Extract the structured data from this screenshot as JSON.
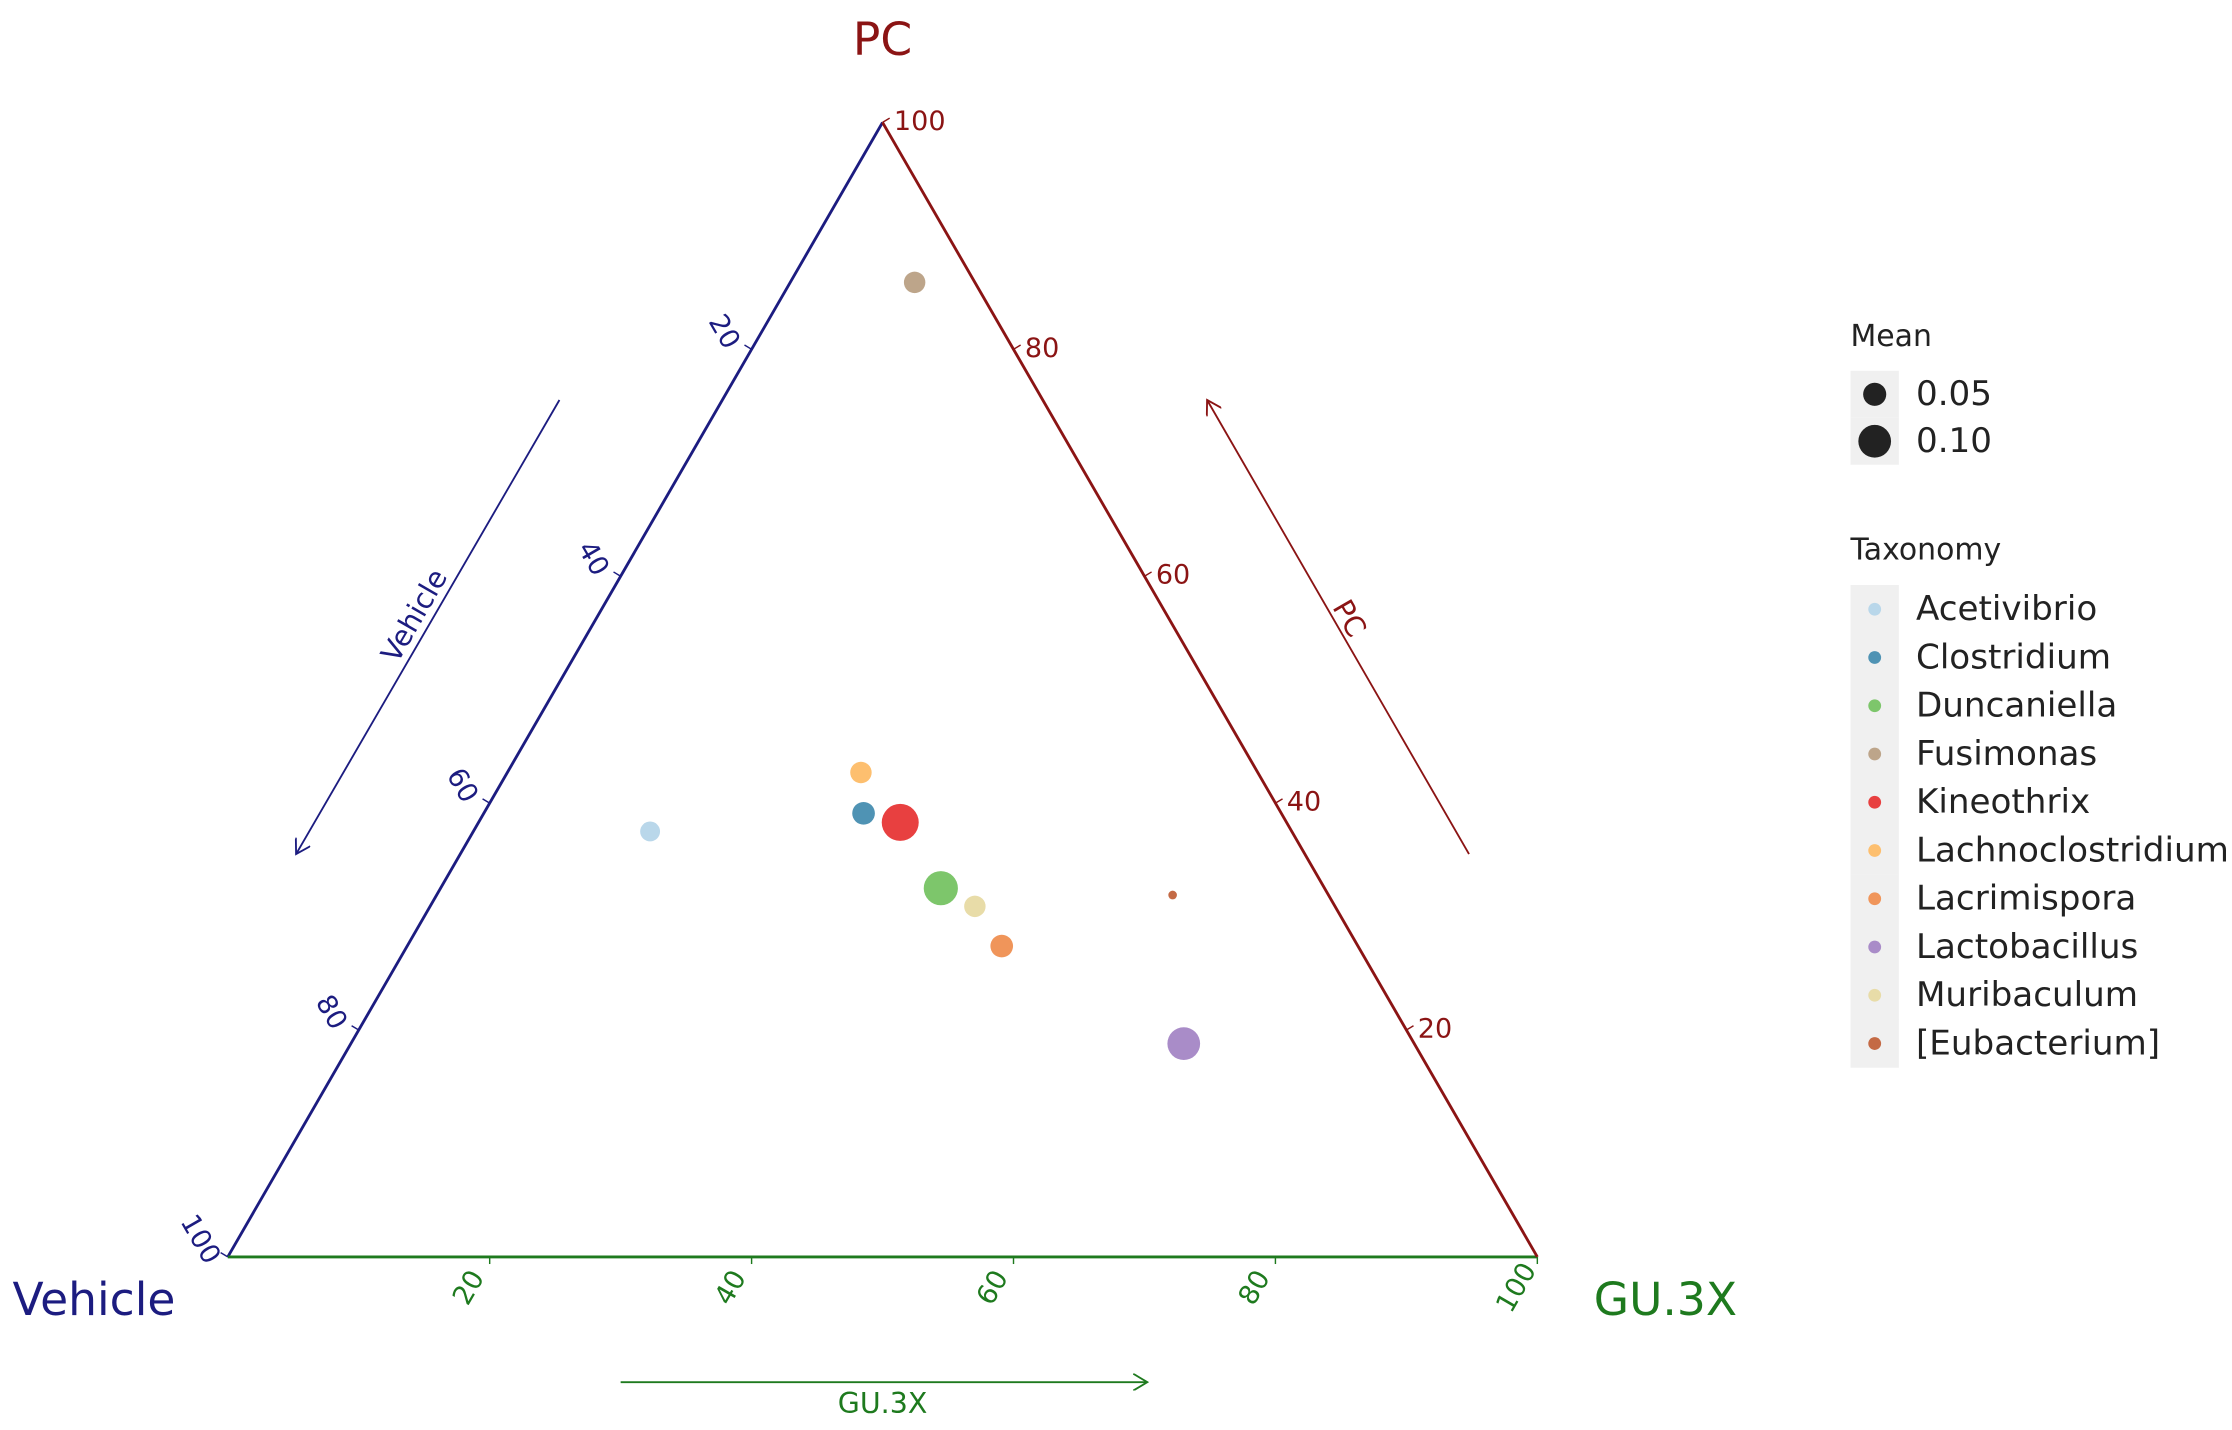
{
  "chart_data": {
    "type": "ternary",
    "axes": [
      {
        "name": "Vehicle",
        "color": "#1c1c80"
      },
      {
        "name": "GU.3X",
        "color": "#1e7a1e"
      },
      {
        "name": "PC",
        "color": "#8b1414"
      }
    ],
    "ticks": [
      20,
      40,
      60,
      80,
      100
    ],
    "size_legend": {
      "title": "Mean",
      "values": [
        0.05,
        0.1
      ],
      "value_labels": [
        "0.05",
        "0.10"
      ]
    },
    "color_legend_title": "Taxonomy",
    "series": [
      {
        "name": "Acetivibrio",
        "color": "#b9d7ea",
        "values": [
          49.0,
          13.5,
          37.5
        ],
        "size": 0.037
      },
      {
        "name": "Clostridium",
        "color": "#4f93b4",
        "values": [
          31.9,
          29.0,
          39.1
        ],
        "size": 0.048
      },
      {
        "name": "Duncaniella",
        "color": "#7dc66b",
        "values": [
          29.3,
          38.2,
          32.5
        ],
        "size": 0.109
      },
      {
        "name": "Fusimonas",
        "color": "#bda58a",
        "values": [
          4.6,
          9.5,
          85.9
        ],
        "size": 0.043
      },
      {
        "name": "Kineothrix",
        "color": "#e84040",
        "values": [
          29.5,
          32.2,
          38.3
        ],
        "size": 0.128
      },
      {
        "name": "Lachnoclostridium",
        "color": "#fdbf6f",
        "values": [
          30.3,
          27.0,
          42.7
        ],
        "size": 0.043
      },
      {
        "name": "Lacrimispora",
        "color": "#f0955a",
        "values": [
          27.2,
          45.4,
          27.4
        ],
        "size": 0.048
      },
      {
        "name": "Lactobacillus",
        "color": "#a98cc8",
        "values": [
          17.6,
          63.6,
          18.8
        ],
        "size": 0.1
      },
      {
        "name": "Muribaculum",
        "color": "#e8dca8",
        "values": [
          27.5,
          41.6,
          30.9
        ],
        "size": 0.043
      },
      {
        "name": "[Eubacterium]",
        "color": "#c46a45",
        "values": [
          11.9,
          56.2,
          31.9
        ],
        "size": 0.007
      }
    ]
  }
}
